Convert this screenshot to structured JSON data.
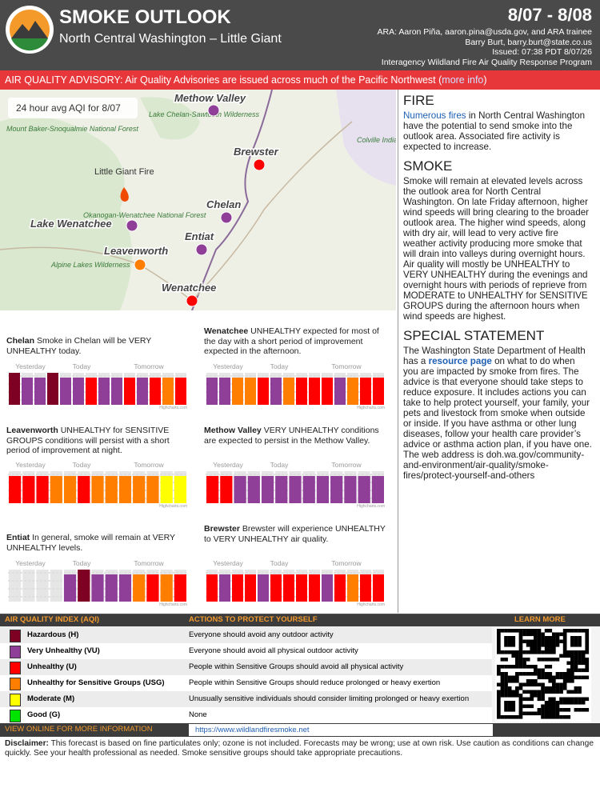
{
  "header": {
    "title": "SMOKE OUTLOOK",
    "subtitle": "North Central Washington – Little Giant",
    "dates": "8/07 - 8/08",
    "credits": [
      "ARA: Aaron Piña, aaron.pina@usda.gov, and ARA trainee",
      "Barry Burt, barry.burt@state.co.us",
      "Issued: 07:38 PDT 8/07/26",
      "Interagency Wildland Fire Air Quality Response Program"
    ]
  },
  "advisory": {
    "text": "AIR QUALITY ADVISORY: Air Quality Advisories are issued across much of the Pacific Northwest (",
    "link": "more info",
    "end": ")"
  },
  "map": {
    "caption": "24 hour avg AQI for 8/07",
    "fire": "Little Giant Fire",
    "features": [
      "Lake Chelan-Sawtooth Wilderness",
      "Mount Baker-Snoqualmie National Forest",
      "Colville Indian Reservation",
      "Okanogan-Wenatchee National Forest",
      "Alpine Lakes Wilderness"
    ],
    "sites": [
      {
        "name": "Methow Valley",
        "aqi": "VU"
      },
      {
        "name": "Brewster",
        "aqi": "U"
      },
      {
        "name": "Chelan",
        "aqi": "VU"
      },
      {
        "name": "Lake Wenatchee",
        "aqi": "VU"
      },
      {
        "name": "Entiat",
        "aqi": "VU"
      },
      {
        "name": "Leavenworth",
        "aqi": "USG"
      },
      {
        "name": "Wenatchee",
        "aqi": "U"
      }
    ]
  },
  "periods": [
    "Yesterday",
    "Today",
    "Tomorrow"
  ],
  "chart_credit": "Highcharts.com",
  "forecasts": [
    {
      "name": "Chelan",
      "text": "Smoke in Chelan will be VERY UNHEALTHY today.",
      "bars": [
        "H",
        "VU",
        "VU",
        "H",
        "VU",
        "VU",
        "U",
        "VU",
        "VU",
        "U",
        "VU",
        "U",
        "USG",
        "U"
      ]
    },
    {
      "name": "Wenatchee",
      "text": "UNHEALTHY expected for most of the day with a short period of improvement expected in the afternoon.",
      "bars": [
        "VU",
        "VU",
        "USG",
        "USG",
        "U",
        "VU",
        "USG",
        "U",
        "U",
        "U",
        "VU",
        "USG",
        "U",
        "U"
      ]
    },
    {
      "name": "Leavenworth",
      "text": "UNHEALTHY for SENSITIVE GROUPS conditions will persist with a short period of improvement at night.",
      "bars": [
        "U",
        "U",
        "U",
        "USG",
        "USG",
        "U",
        "USG",
        "USG",
        "USG",
        "USG",
        "USG",
        "M",
        "M"
      ]
    },
    {
      "name": "Methow Valley",
      "text": "VERY UNHEALTHY conditions are expected to persist in the Methow Valley.",
      "bars": [
        "U",
        "U",
        "VU",
        "VU",
        "VU",
        "VU",
        "VU",
        "VU",
        "VU",
        "VU",
        "VU",
        "VU",
        "VU"
      ]
    },
    {
      "name": "Entiat",
      "text": "In general, smoke will remain at VERY UNHEALTHY levels.",
      "bars": [
        null,
        null,
        null,
        null,
        "VU",
        "H",
        "VU",
        "VU",
        "VU",
        "USG",
        "U",
        "USG",
        "U"
      ]
    },
    {
      "name": "Brewster",
      "text": "Brewster will experience UNHEALTHY to VERY UNHEALTHY air quality.",
      "bars": [
        "U",
        "VU",
        "U",
        "U",
        "VU",
        "U",
        "U",
        "U",
        "U",
        "VU",
        "U",
        "USG",
        "U",
        "U"
      ]
    }
  ],
  "sections": {
    "fire": {
      "title": "FIRE",
      "link": "Numerous fires",
      "text": " in North Central Washington have the potential to send smoke into the outlook area. Associated fire activity is expected to increase."
    },
    "smoke": {
      "title": "SMOKE",
      "text": "Smoke will remain at elevated levels across the outlook area for North Central Washington. On late Friday afternoon, higher wind speeds will bring clearing to the broader outlook area. The higher wind speeds, along with dry air, will lead to very active fire weather activity producing more smoke that will drain into valleys during overnight hours. Air quality will mostly be UNHEALTHY to VERY UNHEALTHY during the evenings and overnight hours with periods of reprieve from MODERATE to UNHEALTHY for SENSITIVE GROUPS during the afternoon hours when wind speeds are highest."
    },
    "special": {
      "title": "SPECIAL STATEMENT",
      "text1": "The Washington State Department of Health has a ",
      "link": "resource page",
      "text2": " on what to do when you are impacted by smoke from fires. The advice is that everyone should take steps to reduce exposure. It includes actions you can take to help protect yourself, your family, your pets and livestock from smoke when outside or inside. If you have asthma or other lung diseases, follow your health care provider’s advice or asthma action plan, if you have one. The web address is doh.wa.gov/community-and-environment/air-quality/smoke-fires/protect-yourself-and-others"
    }
  },
  "aqi": {
    "headers": [
      "AIR QUALITY INDEX (AQI)",
      "ACTIONS TO PROTECT YOURSELF",
      "LEARN MORE"
    ],
    "rows": [
      {
        "code": "H",
        "color": "#7e0023",
        "label": "Hazardous (H)",
        "action": "Everyone should avoid any outdoor activity"
      },
      {
        "code": "VU",
        "color": "#8f3f97",
        "label": "Very Unhealthy (VU)",
        "action": "Everyone should avoid all physical outdoor activity"
      },
      {
        "code": "U",
        "color": "#ff0000",
        "label": "Unhealthy (U)",
        "action": "People within Sensitive Groups should avoid all physical activity"
      },
      {
        "code": "USG",
        "color": "#ff7e00",
        "label": "Unhealthy for Sensitive Groups (USG)",
        "action": "People within Sensitive Groups should reduce prolonged or heavy exertion"
      },
      {
        "code": "M",
        "color": "#ffff00",
        "label": "Moderate (M)",
        "action": "Unusually sensitive individuals should consider limiting prolonged or heavy exertion"
      },
      {
        "code": "G",
        "color": "#00e400",
        "label": "Good (G)",
        "action": "None"
      }
    ],
    "footer": "VIEW ONLINE FOR MORE INFORMATION",
    "url": "https://www.wildlandfiresmoke.net"
  },
  "disclaimer": {
    "label": "Disclaimer:",
    "text": " This forecast is based on fine particulates only; ozone is not included. Forecasts may be wrong; use at own risk. Use caution as conditions can change quickly. See your health professional as needed. Smoke sensitive groups should take appropriate precautions."
  }
}
